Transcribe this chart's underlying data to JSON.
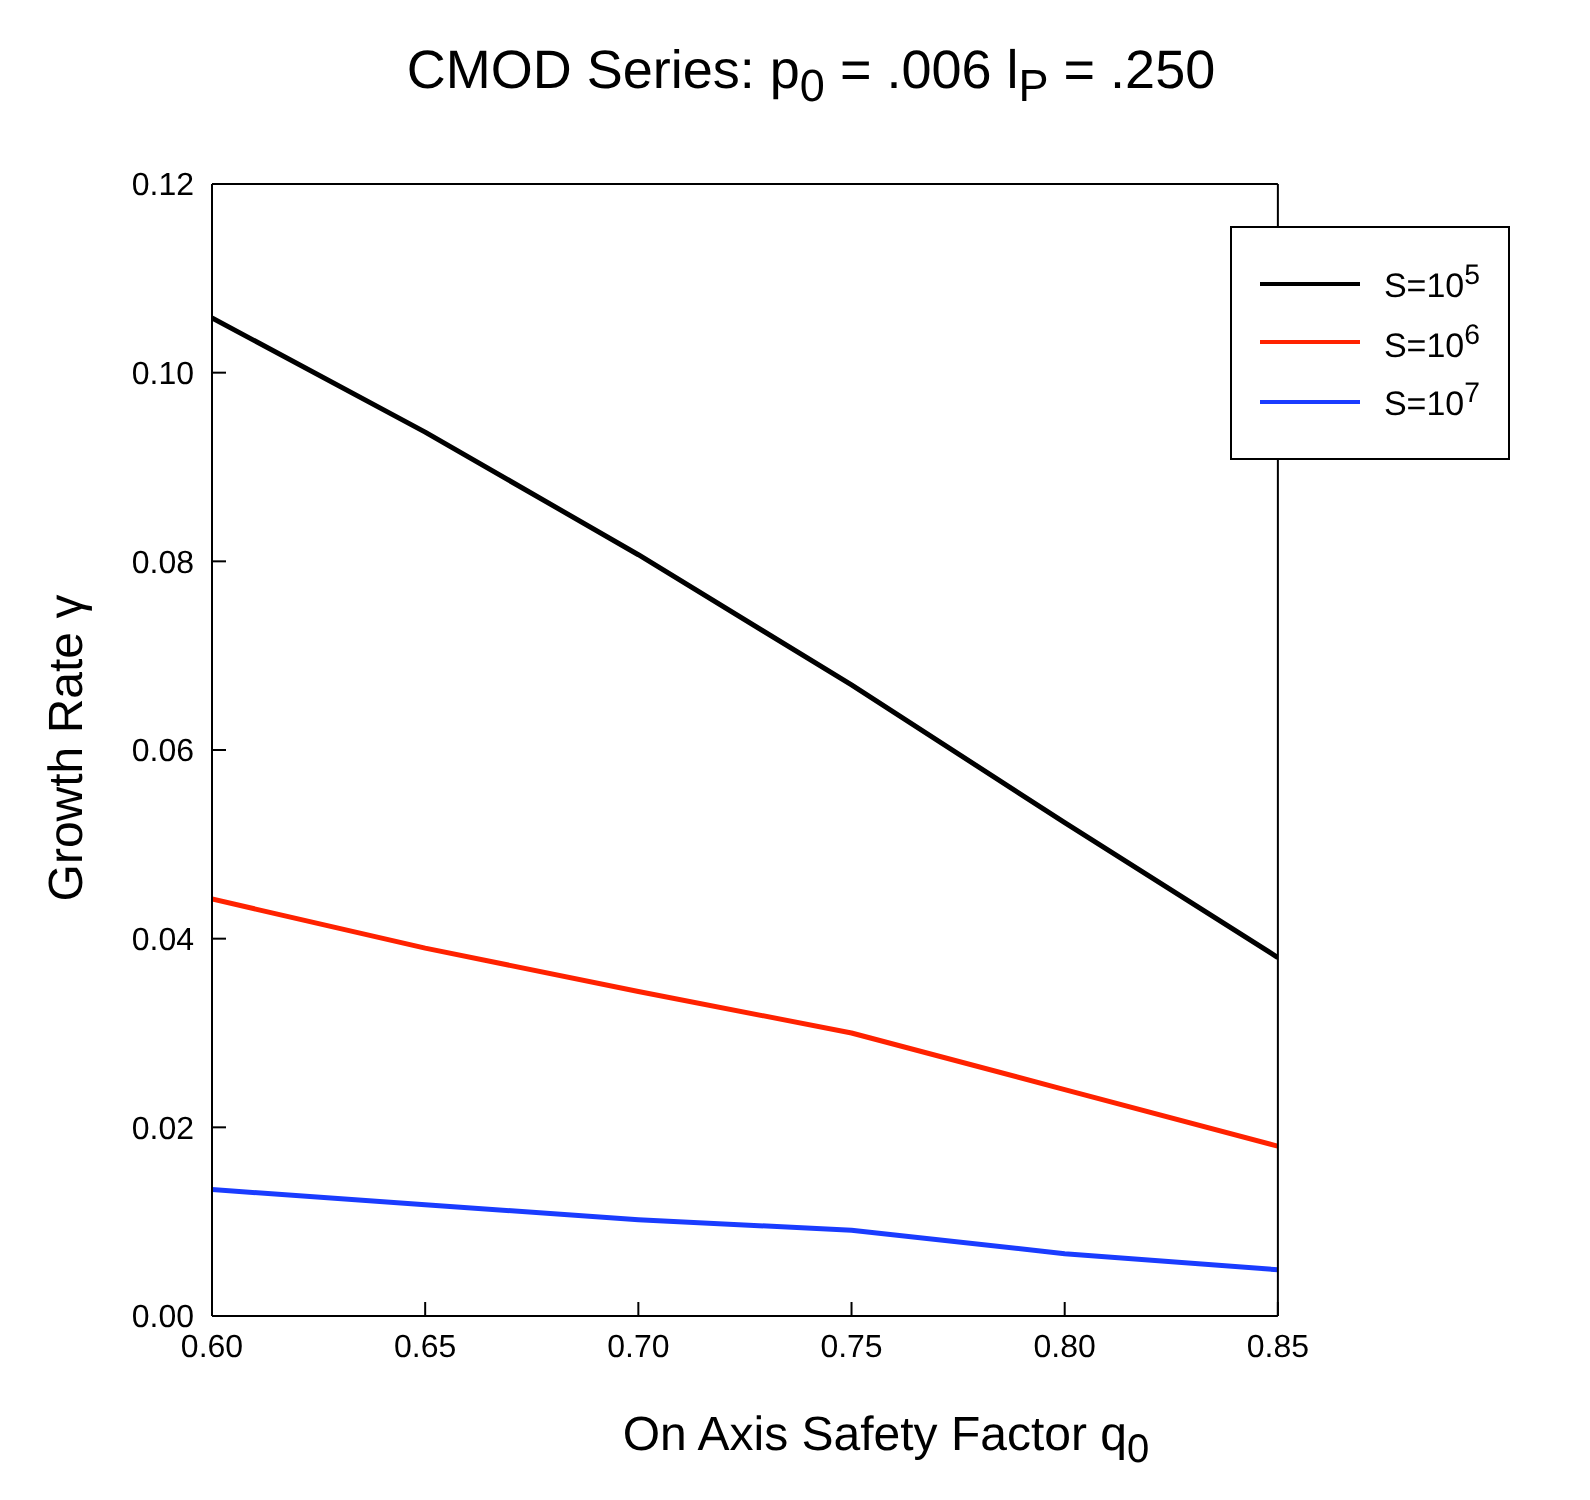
{
  "chart_data": {
    "type": "line",
    "title": "CMOD Series:  p$_{0}$ = .006  l$_{P}$ = .250",
    "xlabel": "On Axis Safety Factor q$_{0}$",
    "ylabel": "Growth Rate γ",
    "x": [
      0.6,
      0.65,
      0.7,
      0.75,
      0.8,
      0.85
    ],
    "series": [
      {
        "name": "S=10$^{5}$",
        "color": "#000000",
        "values": [
          0.1058,
          0.0937,
          0.0807,
          0.0669,
          0.0523,
          0.038
        ]
      },
      {
        "name": "S=10$^{6}$",
        "color": "#ff2200",
        "values": [
          0.0442,
          0.039,
          0.0344,
          0.03,
          0.024,
          0.018
        ]
      },
      {
        "name": "S=10$^{7}$",
        "color": "#1a3cff",
        "values": [
          0.0134,
          0.0118,
          0.0102,
          0.0091,
          0.0066,
          0.0049
        ]
      }
    ],
    "xlim": [
      0.6,
      0.85
    ],
    "xticks": [
      {
        "value": 0.6,
        "label": "0.60"
      },
      {
        "value": 0.65,
        "label": "0.65"
      },
      {
        "value": 0.7,
        "label": "0.70"
      },
      {
        "value": 0.75,
        "label": "0.75"
      },
      {
        "value": 0.8,
        "label": "0.80"
      },
      {
        "value": 0.85,
        "label": "0.85"
      }
    ],
    "ylim": [
      0,
      0.12
    ],
    "yticks": [
      {
        "value": 0,
        "label": "0.00"
      },
      {
        "value": 0.02,
        "label": "0.02"
      },
      {
        "value": 0.04,
        "label": "0.04"
      },
      {
        "value": 0.06,
        "label": "0.06"
      },
      {
        "value": 0.08,
        "label": "0.08"
      },
      {
        "value": 0.1,
        "label": "0.10"
      },
      {
        "value": 0.12,
        "label": "0.12"
      }
    ],
    "grid": false,
    "legend": "top right",
    "marker": "none",
    "line_style": "solid"
  }
}
